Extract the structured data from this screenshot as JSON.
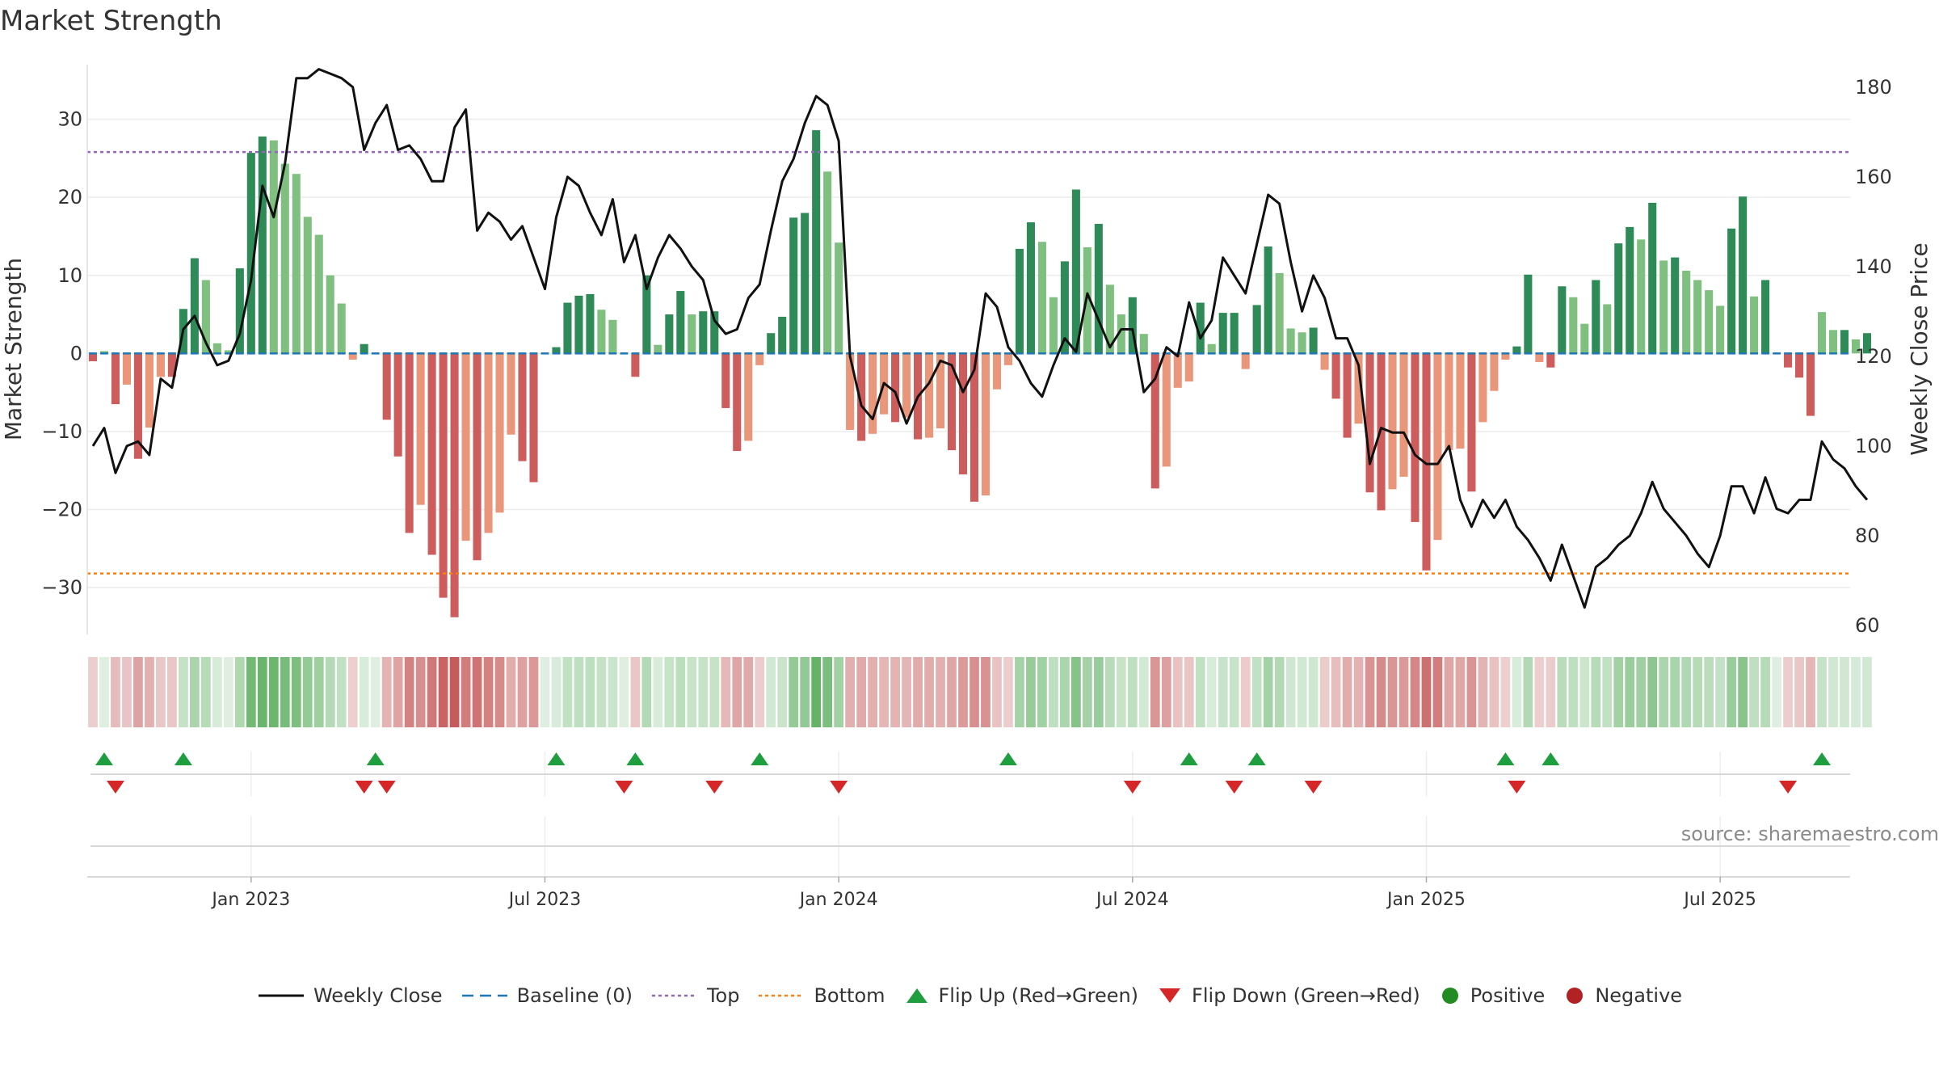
{
  "chart_data": {
    "type": "bar",
    "title": "Market Strength",
    "ylabel_left": "Market Strength",
    "ylabel_right": "Weekly Close Price",
    "ylim_left": [
      -36,
      37
    ],
    "ylim_right": [
      58,
      185
    ],
    "yticks_left": [
      "30",
      "20",
      "10",
      "0",
      "−10",
      "−20",
      "−30"
    ],
    "yticks_left_values": [
      30,
      20,
      10,
      0,
      -10,
      -20,
      -30
    ],
    "yticks_right": [
      "180",
      "160",
      "140",
      "120",
      "100",
      "80",
      "60"
    ],
    "yticks_right_values": [
      180,
      160,
      140,
      120,
      100,
      80,
      60
    ],
    "x_tick_labels": [
      "Jan 2023",
      "Jul 2023",
      "Jan 2024",
      "Jul 2024",
      "Jan 2025",
      "Jul 2025"
    ],
    "x_tick_weeks": [
      14.5,
      40.5,
      66.5,
      92.5,
      118.5,
      144.5
    ],
    "top_line": 25.8,
    "bottom_line": -28.2,
    "weeks": 156,
    "strength": [
      -1,
      0.3,
      -6.5,
      -4,
      -13.5,
      -9.5,
      -3,
      -3,
      5.7,
      12.2,
      9.4,
      1.3,
      0.4,
      10.9,
      25.7,
      27.8,
      27.3,
      24.3,
      23,
      17.5,
      15.2,
      10,
      6.4,
      -0.8,
      1.2,
      0,
      -8.5,
      -13.2,
      -23,
      -19.4,
      -25.8,
      -31.3,
      -33.8,
      -24,
      -26.5,
      -23,
      -20.4,
      -10.4,
      -13.8,
      -16.5,
      0,
      0.8,
      6.5,
      7.4,
      7.6,
      5.6,
      4.3,
      0,
      -3,
      10,
      1.1,
      5,
      8,
      5,
      5.4,
      5.4,
      -7,
      -12.5,
      -11.2,
      -1.5,
      2.6,
      4.7,
      17.4,
      18,
      28.6,
      23.3,
      14.2,
      -9.8,
      -11.2,
      -10.3,
      -7.8,
      -8.8,
      -8.2,
      -11,
      -10.8,
      -9.6,
      -12.4,
      -15.5,
      -19,
      -18.2,
      -4.6,
      -1.5,
      13.4,
      16.8,
      14.3,
      7.2,
      11.8,
      21,
      13.6,
      16.6,
      8.8,
      5,
      7.2,
      2.5,
      -17.3,
      -14.5,
      -4.4,
      -3.6,
      6.5,
      1.2,
      5.2,
      5.2,
      -2,
      6.2,
      13.7,
      10.3,
      3.2,
      2.7,
      3.3,
      -2.1,
      -5.8,
      -10.8,
      -9,
      -17.8,
      -20.1,
      -17.4,
      -15.8,
      -21.6,
      -27.8,
      -23.9,
      -12.4,
      -12.2,
      -17.7,
      -8.8,
      -4.8,
      -0.8,
      0.9,
      10.1,
      -1.1,
      -1.8,
      8.6,
      7.2,
      3.8,
      9.4,
      6.3,
      14.1,
      16.2,
      14.6,
      19.3,
      11.9,
      12.3,
      10.6,
      9.4,
      8.1,
      6.1,
      16,
      20.1,
      7.3,
      9.4,
      0,
      -1.8,
      -3.1,
      -8,
      5.3,
      3,
      3,
      1.8,
      2.6
    ],
    "weekly_close": [
      100,
      104,
      94,
      100,
      101,
      98,
      115,
      113,
      126,
      129,
      123,
      118,
      119,
      125,
      137,
      158,
      151,
      163,
      182,
      182,
      184,
      183,
      182,
      180,
      166,
      172,
      176,
      166,
      167,
      164,
      159,
      159,
      171,
      175,
      148,
      152,
      150,
      146,
      149,
      142,
      135,
      151,
      160,
      158,
      152,
      147,
      155,
      141,
      147,
      135,
      142,
      147,
      144,
      140,
      137,
      128,
      125,
      126,
      133,
      136,
      148,
      159,
      164,
      172,
      178,
      176,
      168,
      120,
      109,
      106,
      114,
      112,
      105,
      111,
      114,
      119,
      118,
      112,
      117,
      134,
      131,
      122,
      119,
      114,
      111,
      118,
      124,
      121,
      134,
      128,
      122,
      126,
      126,
      112,
      115,
      122,
      120,
      132,
      124,
      128,
      142,
      138,
      134,
      145,
      156,
      154,
      141,
      130,
      138,
      133,
      124,
      124,
      118,
      96,
      104,
      103,
      103,
      98,
      96,
      96,
      100,
      88,
      82,
      88,
      84,
      88,
      82,
      79,
      75,
      70,
      78,
      71,
      64,
      73,
      75,
      78,
      80,
      85,
      92,
      86,
      83,
      80,
      76,
      73,
      80,
      91,
      91,
      85,
      93,
      86,
      85,
      88,
      88,
      101,
      97,
      95,
      91,
      88
    ],
    "flip_up_weeks": [
      1,
      8,
      25,
      41,
      48,
      59,
      81,
      97,
      103,
      125,
      129,
      153
    ],
    "flip_down_weeks": [
      2,
      24,
      26,
      47,
      55,
      66,
      92,
      101,
      108,
      126,
      150
    ]
  },
  "legend": {
    "items": [
      {
        "label": "Weekly Close"
      },
      {
        "label": "Baseline (0)"
      },
      {
        "label": "Top"
      },
      {
        "label": "Bottom"
      },
      {
        "label": "Flip Up (Red→Green)"
      },
      {
        "label": "Flip Down (Green→Red)"
      },
      {
        "label": "Positive"
      },
      {
        "label": "Negative"
      }
    ]
  },
  "source_text": "source: sharemaestro.com",
  "colors": {
    "pos_dark": "#2e8b57",
    "pos_light": "#7fbf7f",
    "neg_dark": "#cd5c5c",
    "neg_light": "#e9967a",
    "close_line": "#111111",
    "baseline": "#1f77b4",
    "top_line": "#9467bd",
    "bottom_line": "#ff7f0e",
    "flip_up": "#1e9e3e",
    "flip_down": "#d62728",
    "positive_dot": "#228b22",
    "negative_dot": "#b22222"
  }
}
